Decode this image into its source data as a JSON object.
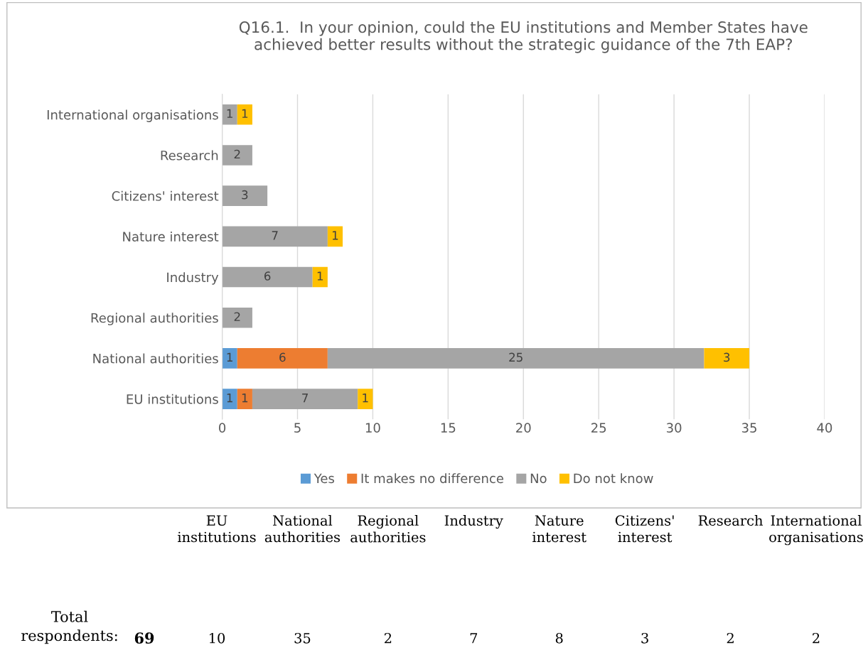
{
  "chart_data": {
    "type": "bar",
    "orientation": "horizontal",
    "stacked": true,
    "title": "Q16.1.  In your opinion, could the EU institutions and Member States have\nachieved better results without the strategic guidance of the 7th EAP?",
    "categories": [
      "International organisations",
      "Research",
      "Citizens' interest",
      "Nature interest",
      "Industry",
      "Regional authorities",
      "National authorities",
      "EU institutions"
    ],
    "series": [
      {
        "name": "Yes",
        "color": "#5b9bd5",
        "values": [
          null,
          null,
          null,
          null,
          null,
          null,
          1,
          1
        ]
      },
      {
        "name": "It makes no difference",
        "color": "#ed7d31",
        "values": [
          null,
          null,
          null,
          null,
          null,
          null,
          6,
          1
        ]
      },
      {
        "name": "No",
        "color": "#a5a5a5",
        "values": [
          1,
          2,
          3,
          7,
          6,
          2,
          25,
          7
        ]
      },
      {
        "name": "Do not know",
        "color": "#ffc000",
        "values": [
          1,
          null,
          null,
          1,
          1,
          null,
          3,
          1
        ]
      }
    ],
    "xlim": [
      0,
      40
    ],
    "xticks": [
      0,
      5,
      10,
      15,
      20,
      25,
      30,
      35,
      40
    ],
    "grid": "x",
    "legend": "bottom",
    "data_labels": true,
    "annotations": [
      "Total respondents:",
      "69",
      "10",
      "35",
      "2",
      "7",
      "8",
      "3",
      "2",
      "2"
    ]
  }
}
